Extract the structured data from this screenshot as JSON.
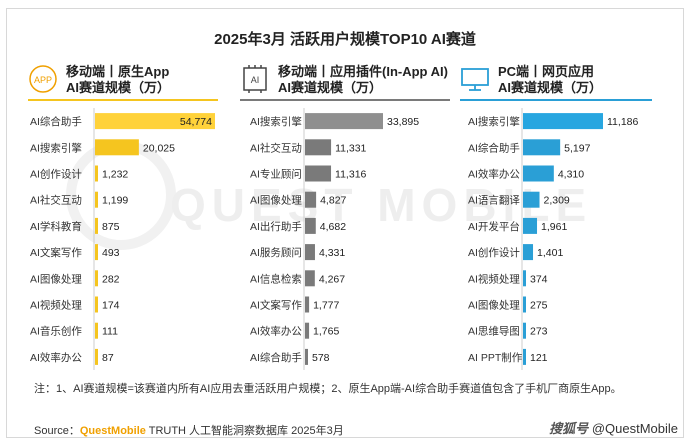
{
  "title": "2025年3月 活跃用户规模TOP10 AI赛道",
  "icons": {
    "panel1": "app-badge-icon",
    "panel2": "ai-plugin-icon",
    "panel3": "monitor-icon",
    "panel1_badge_text": "APP",
    "panel2_badge_text": "AI"
  },
  "colors": {
    "panel1": "#f5c51f",
    "panel1_top": "#ffd23a",
    "panel2": "#7a7a7a",
    "panel2_top": "#8f8f8f",
    "panel3": "#2a9fd6",
    "panel3_top": "#27a6e0"
  },
  "panels": [
    {
      "title_line1": "移动端丨原生App",
      "title_line2": "AI赛道规模（万）"
    },
    {
      "title_line1": "移动端丨应用插件(In-App AI)",
      "title_line2": "AI赛道规模（万）"
    },
    {
      "title_line1": "PC端丨网页应用",
      "title_line2": "AI赛道规模（万）"
    }
  ],
  "chart_data": [
    {
      "type": "bar",
      "orientation": "horizontal",
      "categories": [
        "AI综合助手",
        "AI搜索引擎",
        "AI创作设计",
        "AI社交互动",
        "AI学科教育",
        "AI文案写作",
        "AI图像处理",
        "AI视频处理",
        "AI音乐创作",
        "AI效率办公"
      ],
      "values": [
        54774,
        20025,
        1232,
        1199,
        875,
        493,
        282,
        174,
        111,
        87
      ],
      "value_labels": [
        "54,774",
        "20,025",
        "1,232",
        "1,199",
        "875",
        "493",
        "282",
        "174",
        "111",
        "87"
      ]
    },
    {
      "type": "bar",
      "orientation": "horizontal",
      "categories": [
        "AI搜索引擎",
        "AI社交互动",
        "AI专业顾问",
        "AI图像处理",
        "AI出行助手",
        "AI服务顾问",
        "AI信息检索",
        "AI文案写作",
        "AI效率办公",
        "AI综合助手"
      ],
      "values": [
        33895,
        11331,
        11316,
        4827,
        4682,
        4331,
        4267,
        1777,
        1765,
        578
      ],
      "value_labels": [
        "33,895",
        "11,331",
        "11,316",
        "4,827",
        "4,682",
        "4,331",
        "4,267",
        "1,777",
        "1,765",
        "578"
      ]
    },
    {
      "type": "bar",
      "orientation": "horizontal",
      "categories": [
        "AI搜索引擎",
        "AI综合助手",
        "AI效率办公",
        "AI语言翻译",
        "AI开发平台",
        "AI创作设计",
        "AI视频处理",
        "AI图像处理",
        "AI思维导图",
        "AI PPT制作"
      ],
      "values": [
        11186,
        5197,
        4310,
        2309,
        1961,
        1401,
        374,
        275,
        273,
        121
      ],
      "value_labels": [
        "11,186",
        "5,197",
        "4,310",
        "2,309",
        "1,961",
        "1,401",
        "374",
        "275",
        "273",
        "121"
      ]
    }
  ],
  "note": "注：1、AI赛道规模=该赛道内所有AI应用去重活跃用户规模；2、原生App端-AI综合助手赛道值包含了手机厂商原生App。",
  "source_prefix": "Source：",
  "source_brand": "QuestMobile",
  "source_rest": " TRUTH 人工智能洞察数据库 2025年3月",
  "watermark": "QUEST MOBILE",
  "wm_logo_text": "@QuestMobile",
  "wm_logo_glyph": "搜狐号"
}
